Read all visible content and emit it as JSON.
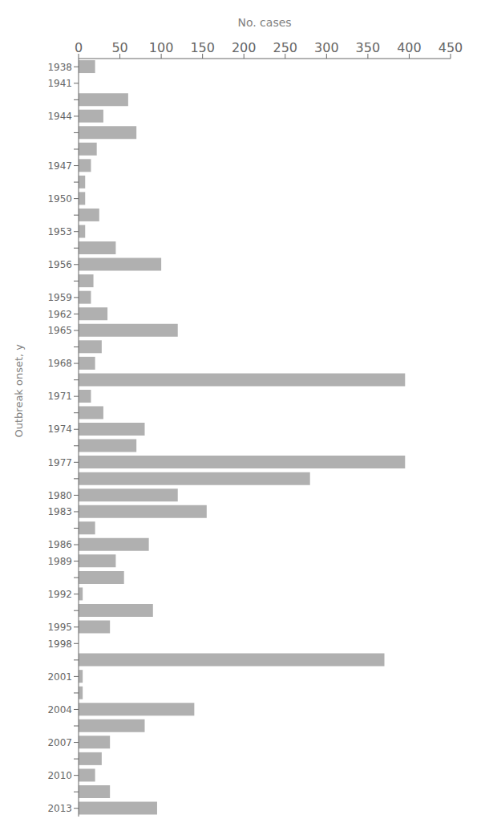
{
  "chart_data": {
    "type": "bar",
    "orientation": "horizontal",
    "xlabel": "No. cases",
    "ylabel": "Outbreak onset, y",
    "color": "#b0b0b0",
    "grid": false,
    "xlim": [
      0,
      450
    ],
    "xticks": [
      0,
      50,
      100,
      150,
      200,
      250,
      300,
      350,
      400,
      450
    ],
    "categories": [
      "1938",
      "1941",
      null,
      "1944",
      null,
      null,
      "1947",
      null,
      "1950",
      null,
      "1953",
      null,
      "1956",
      null,
      "1959",
      "1962",
      "1965",
      null,
      "1968",
      null,
      "1971",
      null,
      "1974",
      null,
      "1977",
      null,
      "1980",
      "1983",
      null,
      "1986",
      "1989",
      null,
      "1992",
      null,
      "1995",
      "1998",
      null,
      "2001",
      null,
      "2004",
      null,
      "2007",
      null,
      "2010",
      null,
      "2013"
    ],
    "values": [
      20,
      null,
      60,
      30,
      70,
      22,
      15,
      8,
      8,
      25,
      8,
      45,
      100,
      18,
      15,
      35,
      120,
      28,
      20,
      395,
      15,
      30,
      80,
      70,
      395,
      280,
      120,
      155,
      20,
      85,
      45,
      55,
      5,
      90,
      38,
      null,
      370,
      5,
      5,
      140,
      80,
      38,
      28,
      20,
      38,
      95
    ]
  }
}
